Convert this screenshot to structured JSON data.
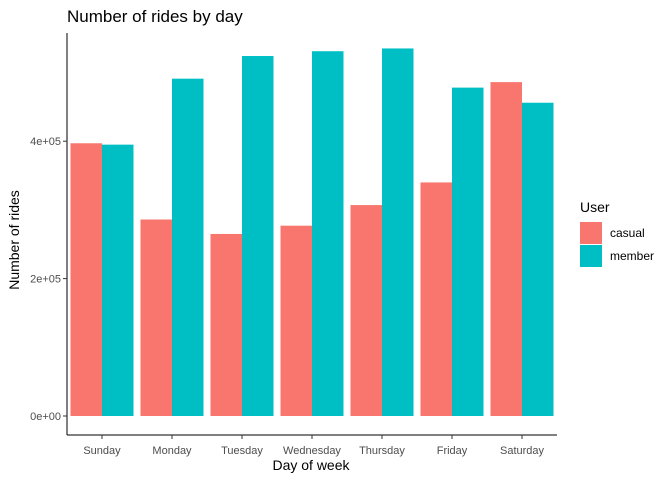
{
  "chart_data": {
    "type": "bar",
    "title": "Number of rides by day",
    "xlabel": "Day of week",
    "ylabel": "Number of rides",
    "categories": [
      "Sunday",
      "Monday",
      "Tuesday",
      "Wednesday",
      "Thursday",
      "Friday",
      "Saturday"
    ],
    "series": [
      {
        "name": "casual",
        "color": "#F8766D",
        "values": [
          397000,
          286000,
          265000,
          277000,
          307000,
          340000,
          486000
        ]
      },
      {
        "name": "member",
        "color": "#00BFC4",
        "values": [
          395000,
          491000,
          524000,
          531000,
          535000,
          478000,
          456000
        ]
      }
    ],
    "yticks": [
      0,
      200000,
      400000
    ],
    "ytick_labels": [
      "0e+00",
      "2e+05",
      "4e+05"
    ],
    "ylim": [
      0,
      560000
    ],
    "grid": false,
    "legend": {
      "title": "User",
      "placement": "right"
    }
  }
}
